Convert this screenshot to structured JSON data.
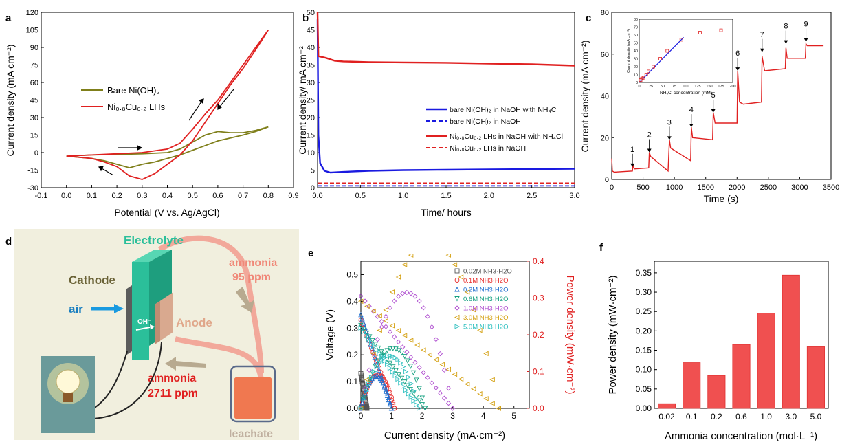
{
  "panel_letters": [
    "a",
    "b",
    "c",
    "d",
    "e",
    "f"
  ],
  "chart_data": [
    {
      "panel": "a",
      "type": "line",
      "xlabel": "Potential (V vs. Ag/AgCl)",
      "ylabel": "Current density (mA cm⁻²)",
      "xlim": [
        -0.1,
        0.9
      ],
      "ylim": [
        -30,
        120
      ],
      "xticks": [
        "-0.1",
        "0.0",
        "0.1",
        "0.2",
        "0.3",
        "0.4",
        "0.5",
        "0.6",
        "0.7",
        "0.8",
        "0.9"
      ],
      "yticks": [
        "-30",
        "-15",
        "0",
        "15",
        "30",
        "45",
        "60",
        "75",
        "90",
        "105",
        "120"
      ],
      "legend": [
        "Bare Ni(OH)₂",
        "Ni₀.₈Cu₀.₂ LHs"
      ],
      "colors": [
        "#7f7f1a",
        "#e02020"
      ],
      "series": [
        {
          "name": "Bare Ni(OH)₂",
          "x": [
            0.0,
            0.1,
            0.2,
            0.3,
            0.4,
            0.45,
            0.5,
            0.55,
            0.6,
            0.65,
            0.7,
            0.75,
            0.8,
            0.8,
            0.75,
            0.7,
            0.6,
            0.55,
            0.5,
            0.45,
            0.4,
            0.35,
            0.3,
            0.25,
            0.2,
            0.15,
            0.1,
            0.0
          ],
          "y": [
            -3,
            -2,
            -1.5,
            -1,
            0,
            3,
            9,
            15,
            18,
            17,
            17,
            19,
            22,
            22,
            18,
            15,
            10,
            6,
            2,
            -2,
            -5,
            -8,
            -10,
            -13,
            -10,
            -7,
            -5,
            -3
          ]
        },
        {
          "name": "Ni₀.₈Cu₀.₂ LHs",
          "x": [
            0.0,
            0.1,
            0.2,
            0.3,
            0.4,
            0.45,
            0.5,
            0.55,
            0.6,
            0.65,
            0.7,
            0.75,
            0.8,
            0.8,
            0.78,
            0.75,
            0.7,
            0.65,
            0.6,
            0.55,
            0.5,
            0.45,
            0.4,
            0.35,
            0.3,
            0.25,
            0.2,
            0.15,
            0.1,
            0.0
          ],
          "y": [
            -3,
            -2,
            -1,
            0,
            3,
            8,
            20,
            33,
            45,
            60,
            75,
            90,
            105,
            105,
            98,
            88,
            72,
            58,
            42,
            26,
            10,
            -2,
            -10,
            -18,
            -23,
            -20,
            -12,
            -8,
            -5,
            -3
          ]
        }
      ]
    },
    {
      "panel": "b",
      "type": "line",
      "xlabel": "Time/ hours",
      "ylabel": "Current density/ mA cm⁻²",
      "xlim": [
        0,
        3.0
      ],
      "ylim": [
        0,
        50
      ],
      "xticks": [
        "0.0",
        "0.5",
        "1.0",
        "1.5",
        "2.0",
        "2.5",
        "3.0"
      ],
      "yticks": [
        "0",
        "5",
        "10",
        "15",
        "20",
        "25",
        "30",
        "35",
        "40",
        "45",
        "50"
      ],
      "legend": [
        "bare Ni(OH)₂ in NaOH with NH₄Cl",
        "bare Ni(OH)₂ in NaOH",
        "Ni₀.₈Cu₀.₂ LHs in NaOH with NH₄Cl",
        "Ni₀.₈Cu₀.₂ LHs in NaOH"
      ],
      "colors": [
        "#1a1ae0",
        "#1a1ae0",
        "#e02020",
        "#e02020"
      ],
      "series": [
        {
          "name": "bare Ni(OH)₂ in NaOH with NH₄Cl",
          "x": [
            0,
            0.01,
            0.03,
            0.08,
            0.15,
            0.3,
            0.6,
            1.0,
            1.5,
            2.0,
            2.5,
            3.0
          ],
          "y": [
            48,
            15,
            7,
            4.8,
            4.3,
            4.5,
            4.8,
            5.0,
            5.1,
            5.2,
            5.3,
            5.4
          ]
        },
        {
          "name": "bare Ni(OH)₂ in NaOH",
          "x": [
            0,
            3.0
          ],
          "y": [
            0.5,
            0.5
          ]
        },
        {
          "name": "Ni₀.₈Cu₀.₂ LHs in NaOH with NH₄Cl",
          "x": [
            0,
            0.01,
            0.05,
            0.1,
            0.2,
            0.3,
            0.6,
            1.0,
            1.5,
            2.0,
            2.5,
            3.0
          ],
          "y": [
            50,
            37.5,
            37.3,
            37,
            36.2,
            36,
            35.8,
            35.7,
            35.6,
            35.4,
            35.2,
            34.8
          ]
        },
        {
          "name": "Ni₀.₈Cu₀.₂ LHs in NaOH",
          "x": [
            0,
            3.0
          ],
          "y": [
            1.3,
            1.3
          ]
        }
      ]
    },
    {
      "panel": "c",
      "type": "line",
      "xlabel": "Time (s)",
      "ylabel": "Current density (mA cm⁻²)",
      "xlim": [
        0,
        3500
      ],
      "ylim": [
        0,
        80
      ],
      "xticks": [
        "0",
        "500",
        "1000",
        "1500",
        "2000",
        "2500",
        "3000",
        "3500"
      ],
      "yticks": [
        "0",
        "20",
        "40",
        "60",
        "80"
      ],
      "step_labels": [
        "1",
        "2",
        "3",
        "4",
        "5",
        "6",
        "7",
        "8",
        "9"
      ],
      "step_x": [
        330,
        600,
        920,
        1270,
        1620,
        2010,
        2400,
        2780,
        3100
      ],
      "step_y": [
        5,
        12,
        18,
        24,
        31,
        51,
        60,
        64,
        65
      ],
      "color": "#e02020",
      "series": [
        {
          "name": "",
          "x": [
            0,
            10,
            40,
            330,
            340,
            360,
            590,
            600,
            620,
            900,
            920,
            940,
            1260,
            1270,
            1290,
            1610,
            1620,
            1650,
            2000,
            2010,
            2040,
            2100,
            2390,
            2400,
            2440,
            2770,
            2780,
            2800,
            3090,
            3100,
            3120,
            3380
          ],
          "y": [
            10,
            4,
            3.5,
            4,
            7,
            5,
            5.5,
            13,
            11,
            4,
            19,
            15,
            9,
            25,
            20,
            19,
            32,
            27,
            27,
            52,
            37,
            36,
            37,
            59,
            52,
            53,
            63,
            58,
            58,
            65,
            64,
            64
          ]
        }
      ],
      "inset": {
        "xlabel": "NH₄Cl concentration (mM)",
        "ylabel": "Current density (mA cm⁻²)",
        "xlim": [
          0,
          200
        ],
        "ylim": [
          0,
          80
        ],
        "xticks": [
          "0",
          "25",
          "50",
          "75",
          "100",
          "125",
          "150",
          "175",
          "200"
        ],
        "yticks": [
          "0",
          "10",
          "20",
          "30",
          "40",
          "50",
          "60",
          "70",
          "80"
        ],
        "points_x": [
          3,
          6,
          9,
          15,
          20,
          30,
          45,
          60,
          90,
          130,
          175
        ],
        "points_y": [
          3,
          5,
          6,
          10,
          14,
          20,
          30,
          40,
          54,
          63,
          66
        ],
        "fit_x": [
          0,
          95
        ],
        "fit_y": [
          0,
          57
        ]
      }
    },
    {
      "panel": "e",
      "type": "scatter",
      "xlabel": "Current density (mA·cm⁻²)",
      "ylabel": "Voltage (V)",
      "y2label": "Power density (mW·cm⁻²)",
      "xlim": [
        0,
        5.5
      ],
      "ylim": [
        0,
        0.55
      ],
      "y2lim": [
        0,
        0.4
      ],
      "xticks": [
        "0",
        "1",
        "2",
        "3",
        "4",
        "5"
      ],
      "yticks": [
        "0.0",
        "0.1",
        "0.2",
        "0.3",
        "0.4",
        "0.5"
      ],
      "y2ticks": [
        "0.0",
        "0.1",
        "0.2",
        "0.3",
        "0.4"
      ],
      "legend": [
        "0.02M NH3·H2O",
        "0.1M NH3·H2O",
        "0.2M NH3·H2O",
        "0.6M NH3·H2O",
        "1.0M NH3·H2O",
        "3.0M NH3·H2O",
        "5.0M NH3·H2O"
      ],
      "colors": [
        "#555555",
        "#e83030",
        "#1f6fd0",
        "#14a080",
        "#b050d0",
        "#d4a010",
        "#30c0c0"
      ],
      "markers": [
        "square",
        "circle",
        "triangle-up",
        "triangle-down",
        "diamond",
        "triangle-left",
        "triangle-right"
      ],
      "series": [
        {
          "name": "0.02M NH3·H2O",
          "imax": 0.2,
          "voc": 0.13
        },
        {
          "name": "0.1M NH3·H2O",
          "imax": 1.1,
          "voc": 0.33
        },
        {
          "name": "0.2M NH3·H2O",
          "imax": 1.0,
          "voc": 0.35
        },
        {
          "name": "0.6M NH3·H2O",
          "imax": 2.1,
          "voc": 0.31
        },
        {
          "name": "1.0M NH3·H2O",
          "imax": 3.0,
          "voc": 0.42
        },
        {
          "name": "3.0M NH3·H2O",
          "imax": 4.5,
          "voc": 0.4
        },
        {
          "name": "5.0M NH3·H2O",
          "imax": 1.9,
          "voc": 0.3
        }
      ]
    },
    {
      "panel": "f",
      "type": "bar",
      "xlabel": "Ammonia concentration (mol·L⁻¹)",
      "ylabel": "Power density (mW·cm⁻²)",
      "categories": [
        "0.02",
        "0.1",
        "0.2",
        "0.6",
        "1.0",
        "3.0",
        "5.0"
      ],
      "values": [
        0.012,
        0.118,
        0.085,
        0.165,
        0.246,
        0.344,
        0.159
      ],
      "ylim": [
        0,
        0.38
      ],
      "yticks": [
        "0.00",
        "0.05",
        "0.10",
        "0.15",
        "0.20",
        "0.25",
        "0.30",
        "0.35"
      ],
      "color": "#f05050"
    }
  ],
  "schematic": {
    "title": "Electrolyte",
    "cathode": "Cathode",
    "anode": "Anode",
    "air": "air",
    "oh": "OH⁻",
    "ammonia_out": "ammonia",
    "ammonia_out_ppm": "95 ppm",
    "ammonia_in": "ammonia",
    "ammonia_in_ppm": "2711 ppm",
    "leachate": "leachate",
    "colors": {
      "electrolyte": "#2bbf9a",
      "cathode": "#555555",
      "anode": "#d9a98f",
      "tube": "#f2a89a",
      "bg": "#f1efde",
      "liquid": "#f07850"
    }
  }
}
